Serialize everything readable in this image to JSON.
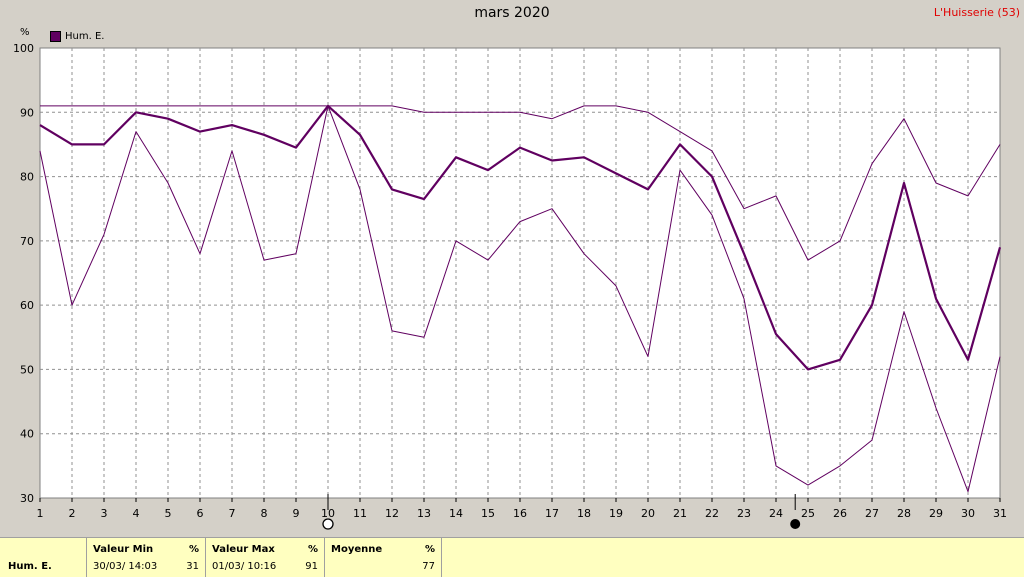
{
  "header": {
    "title": "mars 2020",
    "station": "L'Huisserie (53)",
    "unit": "%"
  },
  "legend": {
    "label": "Hum. E.",
    "color": "#600060"
  },
  "chart_data": {
    "type": "line",
    "title": "mars 2020",
    "x": [
      1,
      2,
      3,
      4,
      5,
      6,
      7,
      8,
      9,
      10,
      11,
      12,
      13,
      14,
      15,
      16,
      17,
      18,
      19,
      20,
      21,
      22,
      23,
      24,
      25,
      26,
      27,
      28,
      29,
      30,
      31
    ],
    "ylim": [
      30,
      100
    ],
    "yticks": [
      30,
      40,
      50,
      60,
      70,
      80,
      90,
      100
    ],
    "grid": true,
    "legend_position": "top-left",
    "series": [
      {
        "name": "Hum. E.",
        "role": "mean",
        "values": [
          88,
          85,
          85,
          90,
          89,
          87,
          88,
          86.5,
          84.5,
          91,
          86.5,
          78,
          76.5,
          83,
          81,
          84.5,
          82.5,
          83,
          80.5,
          78,
          85,
          80,
          68,
          55.5,
          50,
          51.5,
          60,
          79,
          61,
          51.5,
          69
        ]
      },
      {
        "role": "max",
        "values": [
          91,
          91,
          91,
          91,
          91,
          91,
          91,
          91,
          91,
          91,
          91,
          91,
          90,
          90,
          90,
          90,
          89,
          91,
          91,
          90,
          87,
          84,
          75,
          77,
          67,
          70,
          82,
          89,
          79,
          77,
          85
        ]
      },
      {
        "role": "min",
        "values": [
          84,
          60,
          71,
          87,
          79,
          68,
          84,
          67,
          68,
          91,
          78,
          56,
          55,
          70,
          67,
          73,
          75,
          68,
          63,
          52,
          81,
          74,
          61,
          35,
          32,
          35,
          39,
          59,
          44,
          31,
          52
        ]
      }
    ],
    "markers": [
      {
        "day": 10,
        "symbol": "open-circle"
      },
      {
        "day": 24.6,
        "symbol": "filled-circle"
      }
    ]
  },
  "stats": {
    "row_label": "Hum. E.",
    "min": {
      "header": "Valeur Min",
      "unit": "%",
      "date": "30/03/  14:03",
      "value": "31"
    },
    "max": {
      "header": "Valeur Max",
      "unit": "%",
      "date": "01/03/  10:16",
      "value": "91"
    },
    "avg": {
      "header": "Moyenne",
      "unit": "%",
      "value": "77"
    }
  }
}
